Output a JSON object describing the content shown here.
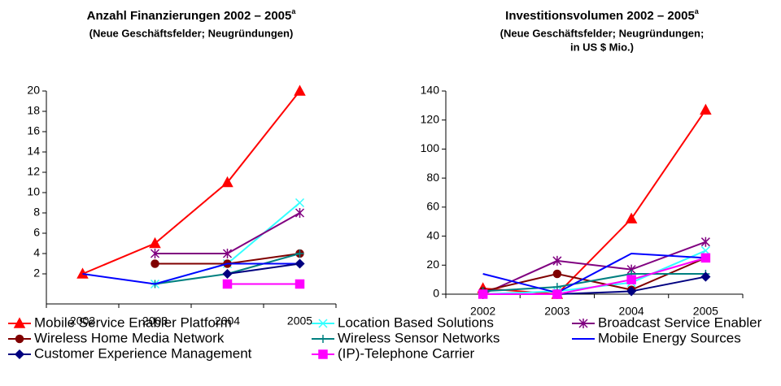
{
  "chart_data": [
    {
      "type": "line",
      "title": "Anzahl Finanzierungen 2002 – 2005",
      "title_superscript": "a",
      "subtitle_lines": [
        "(Neue Geschäftsfelder; Neugründungen)"
      ],
      "categories": [
        "2002",
        "2003",
        "2004",
        "2005"
      ],
      "ylim": [
        0,
        20
      ],
      "yticks": [
        2,
        4,
        6,
        8,
        10,
        12,
        14,
        16,
        18,
        20
      ],
      "series": [
        {
          "name": "Mobile Service Enabler Platform",
          "color": "#ff0000",
          "marker": "triangle",
          "values": [
            2,
            5,
            11,
            20
          ]
        },
        {
          "name": "Location Based Solutions",
          "color": "#33ffff",
          "marker": "x",
          "values": [
            null,
            1,
            3,
            9
          ]
        },
        {
          "name": "Broadcast Service Enabler",
          "color": "#800080",
          "marker": "star",
          "values": [
            null,
            4,
            4,
            8
          ]
        },
        {
          "name": "Wireless Home Media Network",
          "color": "#800000",
          "marker": "circle",
          "values": [
            null,
            3,
            3,
            4
          ]
        },
        {
          "name": "Wireless Sensor Networks",
          "color": "#008080",
          "marker": "plus",
          "values": [
            null,
            1,
            2,
            4
          ]
        },
        {
          "name": "Mobile Energy Sources",
          "color": "#0000ff",
          "marker": "none",
          "values": [
            2,
            1,
            3,
            3
          ]
        },
        {
          "name": "Customer Experience Management",
          "color": "#000080",
          "marker": "diamond",
          "values": [
            null,
            null,
            2,
            3
          ]
        },
        {
          "name": "(IP)-Telephone Carrier",
          "color": "#ff00ff",
          "marker": "square",
          "values": [
            null,
            null,
            1,
            1
          ]
        }
      ]
    },
    {
      "type": "line",
      "title": "Investitionsvolumen 2002 – 2005",
      "title_superscript": "a",
      "subtitle_lines": [
        "(Neue Geschäftsfelder; Neugründungen;",
        "in US $ Mio.)"
      ],
      "categories": [
        "2002",
        "2003",
        "2004",
        "2005"
      ],
      "ylim": [
        0,
        140
      ],
      "yticks": [
        0,
        20,
        40,
        60,
        80,
        100,
        120,
        140
      ],
      "series": [
        {
          "name": "Mobile Service Enabler Platform",
          "color": "#ff0000",
          "marker": "triangle",
          "values": [
            4,
            0,
            52,
            127
          ]
        },
        {
          "name": "Location Based Solutions",
          "color": "#33ffff",
          "marker": "x",
          "values": [
            0,
            2,
            8,
            30
          ]
        },
        {
          "name": "Broadcast Service Enabler",
          "color": "#800080",
          "marker": "star",
          "values": [
            0,
            23,
            17,
            36
          ]
        },
        {
          "name": "Wireless Home Media Network",
          "color": "#800000",
          "marker": "circle",
          "values": [
            2,
            14,
            3,
            25
          ]
        },
        {
          "name": "Wireless Sensor Networks",
          "color": "#008080",
          "marker": "plus",
          "values": [
            2,
            5,
            14,
            14
          ]
        },
        {
          "name": "Mobile Energy Sources",
          "color": "#0000ff",
          "marker": "none",
          "values": [
            14,
            1,
            28,
            25
          ]
        },
        {
          "name": "Customer Experience Management",
          "color": "#000080",
          "marker": "diamond",
          "values": [
            0,
            0,
            2,
            12
          ]
        },
        {
          "name": "(IP)-Telephone Carrier",
          "color": "#ff00ff",
          "marker": "square",
          "values": [
            0,
            0,
            10,
            25
          ]
        }
      ]
    }
  ]
}
